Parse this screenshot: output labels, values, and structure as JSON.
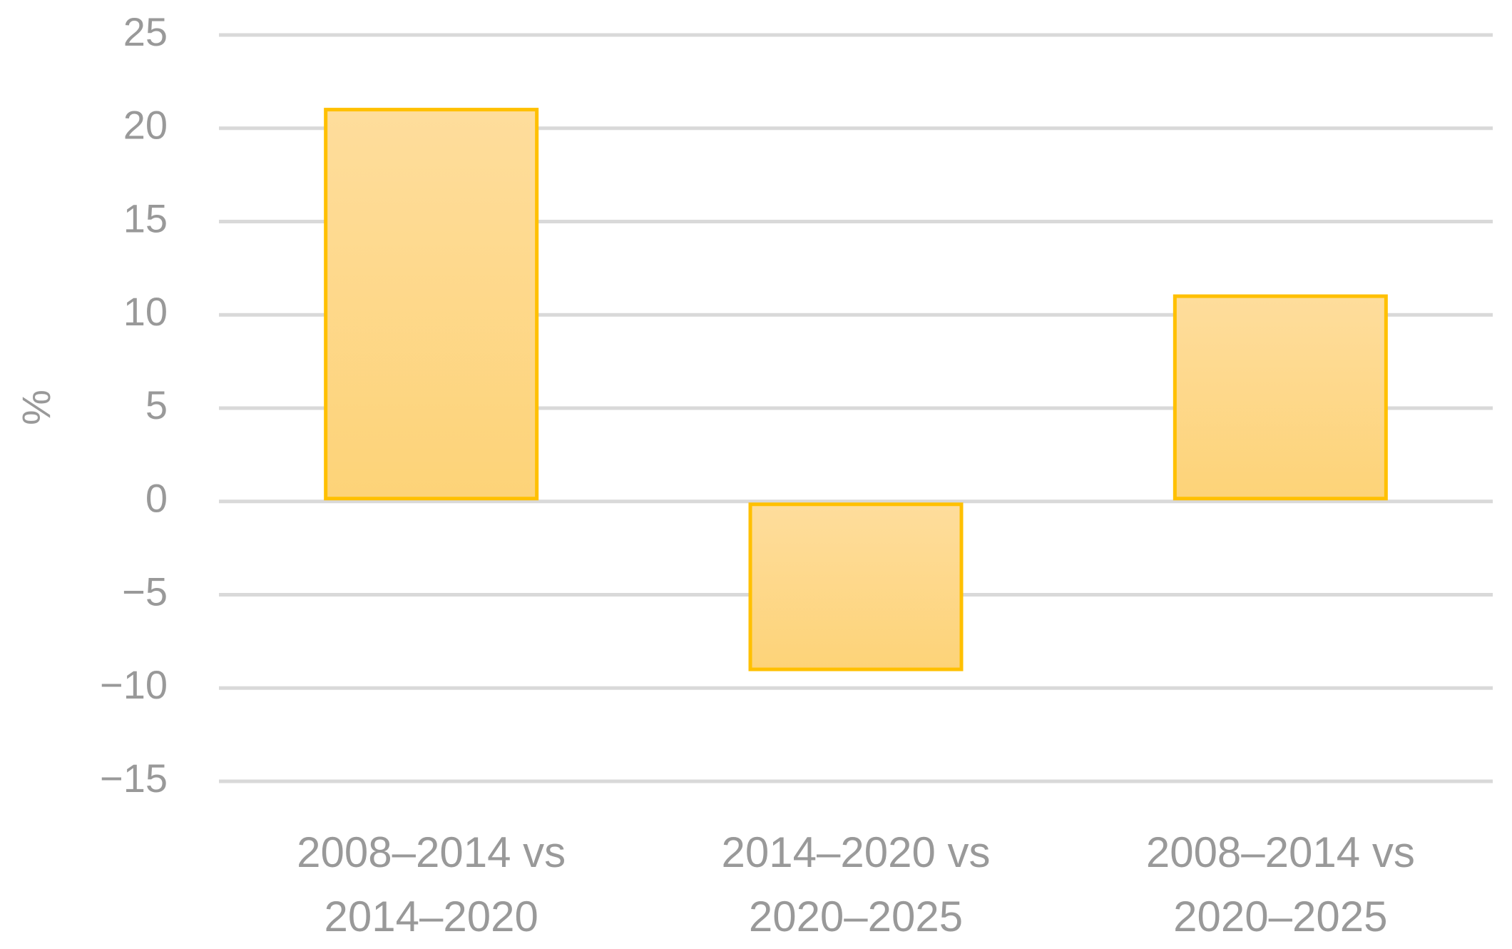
{
  "chart_data": {
    "type": "bar",
    "y_label": "%",
    "categories": [
      "2008–2014 vs 2014–2020",
      "2014–2020 vs 2020–2025",
      "2008–2014 vs 2020–2025"
    ],
    "values": [
      21,
      -9,
      11
    ],
    "color": "#ffc000",
    "ylim": [
      -15,
      25
    ],
    "yticks": [
      {
        "value": -15,
        "label": "−15"
      },
      {
        "value": -10,
        "label": "−10"
      },
      {
        "value": -5,
        "label": "−5"
      },
      0,
      5,
      10,
      15,
      20,
      25
    ],
    "grid": true
  }
}
